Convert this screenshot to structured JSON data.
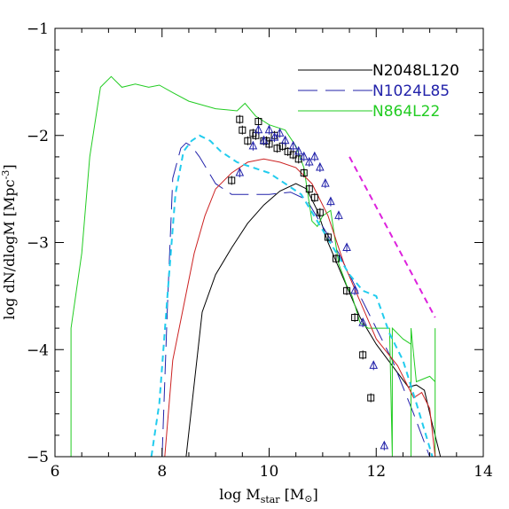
{
  "chart_data": {
    "type": "line",
    "xlabel": {
      "main": "log M",
      "sub": "star",
      "unit": "[M",
      "sun": "⊙",
      "close": "]"
    },
    "ylabel": {
      "main": "log dN/dlogM [Mpc",
      "sup": "-3",
      "close": "]"
    },
    "xlim": [
      6,
      14
    ],
    "ylim": [
      -5,
      -1
    ],
    "xticks": [
      "6",
      "8",
      "10",
      "12",
      "14"
    ],
    "yticks": [
      "−1",
      "−2",
      "−3",
      "−4",
      "−5"
    ],
    "grid": false,
    "legend": {
      "placement": "top-right",
      "entries": [
        {
          "label": "N2048L120",
          "color": "#000000",
          "dash": "solid"
        },
        {
          "label": "N1024L85",
          "color": "#2222aa",
          "dash": "long-dash"
        },
        {
          "label": "N864L22",
          "color": "#22cc22",
          "dash": "solid"
        }
      ]
    },
    "series": [
      {
        "name": "N2048L120",
        "color": "#000000",
        "dash": "solid",
        "x": [
          8.45,
          8.75,
          9.0,
          9.3,
          9.6,
          9.9,
          10.2,
          10.5,
          10.7,
          10.9,
          11.1,
          11.4,
          11.7,
          12.0,
          12.3,
          12.6,
          12.75,
          12.9,
          13.05,
          13.2
        ],
        "y": [
          -5.0,
          -3.65,
          -3.3,
          -3.05,
          -2.82,
          -2.65,
          -2.52,
          -2.45,
          -2.5,
          -2.7,
          -3.0,
          -3.35,
          -3.7,
          -3.95,
          -4.15,
          -4.35,
          -4.33,
          -4.38,
          -4.7,
          -5.0
        ]
      },
      {
        "name": "N1024L85",
        "color": "#2222aa",
        "dash": "long-dash",
        "x": [
          8.0,
          8.1,
          8.2,
          8.35,
          8.45,
          8.55,
          8.7,
          9.0,
          9.3,
          9.6,
          10.0,
          10.4,
          10.7,
          11.0,
          11.3,
          11.6,
          11.9,
          12.3,
          12.7,
          13.0
        ],
        "y": [
          -5.0,
          -3.6,
          -2.4,
          -2.12,
          -2.07,
          -2.1,
          -2.2,
          -2.45,
          -2.55,
          -2.55,
          -2.55,
          -2.53,
          -2.6,
          -2.85,
          -3.1,
          -3.4,
          -3.7,
          -4.1,
          -4.6,
          -5.0
        ]
      },
      {
        "name": "N864L22",
        "color": "#22cc22",
        "dash": "solid",
        "x": [
          6.3,
          6.3,
          6.5,
          6.65,
          6.85,
          7.05,
          7.25,
          7.5,
          7.75,
          7.95,
          8.2,
          8.5,
          9.0,
          9.4,
          9.55,
          9.75,
          10.0,
          10.3,
          10.5,
          10.65,
          10.8,
          10.9,
          11.0,
          11.15,
          11.3,
          11.45,
          11.55,
          11.7,
          11.85,
          12.1,
          12.25,
          12.3,
          12.3,
          12.3,
          12.5,
          12.65,
          12.65,
          12.65,
          12.75,
          13.0,
          13.1,
          13.1,
          13.1,
          13.2
        ],
        "y": [
          -5.0,
          -3.8,
          -3.1,
          -2.2,
          -1.55,
          -1.45,
          -1.55,
          -1.52,
          -1.55,
          -1.53,
          -1.6,
          -1.68,
          -1.75,
          -1.77,
          -1.7,
          -1.82,
          -1.9,
          -1.95,
          -2.1,
          -2.3,
          -2.8,
          -2.85,
          -2.75,
          -2.7,
          -3.2,
          -3.4,
          -3.5,
          -3.75,
          -3.8,
          -3.8,
          -3.8,
          -5.0,
          -3.8,
          -3.8,
          -3.9,
          -3.95,
          -5.0,
          -3.8,
          -4.3,
          -4.25,
          -4.3,
          -3.8,
          -5.0,
          -5.0
        ]
      },
      {
        "name": "",
        "color": "#cc2222",
        "dash": "solid",
        "x": [
          8.05,
          8.2,
          8.4,
          8.6,
          8.8,
          9.0,
          9.3,
          9.6,
          9.9,
          10.2,
          10.5,
          10.8,
          11.1,
          11.4,
          11.7,
          12.0,
          12.4,
          12.7,
          12.85,
          13.0,
          13.1
        ],
        "y": [
          -5.0,
          -4.1,
          -3.6,
          -3.1,
          -2.75,
          -2.5,
          -2.35,
          -2.25,
          -2.22,
          -2.25,
          -2.3,
          -2.45,
          -2.75,
          -3.2,
          -3.55,
          -3.9,
          -4.15,
          -4.45,
          -4.4,
          -4.55,
          -5.0
        ]
      },
      {
        "name": "",
        "color": "#22ccee",
        "dash": "dash",
        "x": [
          7.8,
          7.95,
          8.1,
          8.25,
          8.4,
          8.55,
          8.7,
          8.9,
          9.1,
          9.4,
          9.7,
          10.0,
          10.3,
          10.6,
          10.9,
          11.2,
          11.5,
          11.75,
          12.0,
          12.25,
          12.5,
          12.75,
          12.9,
          13.05
        ],
        "y": [
          -5.0,
          -4.5,
          -3.5,
          -2.55,
          -2.15,
          -2.05,
          -2.0,
          -2.05,
          -2.15,
          -2.25,
          -2.3,
          -2.35,
          -2.45,
          -2.55,
          -2.8,
          -3.05,
          -3.3,
          -3.45,
          -3.5,
          -3.85,
          -4.1,
          -4.5,
          -4.75,
          -5.0
        ]
      },
      {
        "name": "",
        "color": "#dd22dd",
        "dash": "dash",
        "x": [
          11.5,
          13.1
        ],
        "y": [
          -2.2,
          -3.7
        ]
      }
    ],
    "markers": [
      {
        "name": "squares",
        "color": "#000000",
        "shape": "square",
        "x": [
          9.3,
          9.45,
          9.5,
          9.6,
          9.7,
          9.75,
          9.8,
          9.9,
          9.95,
          10.0,
          10.1,
          10.15,
          10.25,
          10.35,
          10.45,
          10.55,
          10.65,
          10.75,
          10.85,
          10.95,
          11.1,
          11.25,
          11.45,
          11.6,
          11.75,
          11.9
        ],
        "y": [
          -2.42,
          -1.85,
          -1.95,
          -2.05,
          -1.98,
          -2.0,
          -1.87,
          -2.05,
          -2.05,
          -2.08,
          -2.0,
          -2.12,
          -2.1,
          -2.15,
          -2.18,
          -2.22,
          -2.35,
          -2.5,
          -2.58,
          -2.72,
          -2.95,
          -3.15,
          -3.45,
          -3.7,
          -4.05,
          -4.45
        ]
      },
      {
        "name": "triangles",
        "color": "#2222aa",
        "shape": "triangle",
        "x": [
          9.45,
          9.7,
          9.8,
          9.9,
          10.0,
          10.1,
          10.2,
          10.3,
          10.45,
          10.55,
          10.65,
          10.75,
          10.85,
          10.95,
          11.05,
          11.15,
          11.3,
          11.45,
          11.6,
          11.75,
          11.95,
          12.15
        ],
        "y": [
          -2.35,
          -2.1,
          -1.95,
          -2.05,
          -1.95,
          -2.02,
          -1.98,
          -2.05,
          -2.1,
          -2.15,
          -2.2,
          -2.25,
          -2.2,
          -2.3,
          -2.45,
          -2.62,
          -2.75,
          -3.05,
          -3.45,
          -3.75,
          -4.15,
          -4.9
        ]
      }
    ]
  }
}
